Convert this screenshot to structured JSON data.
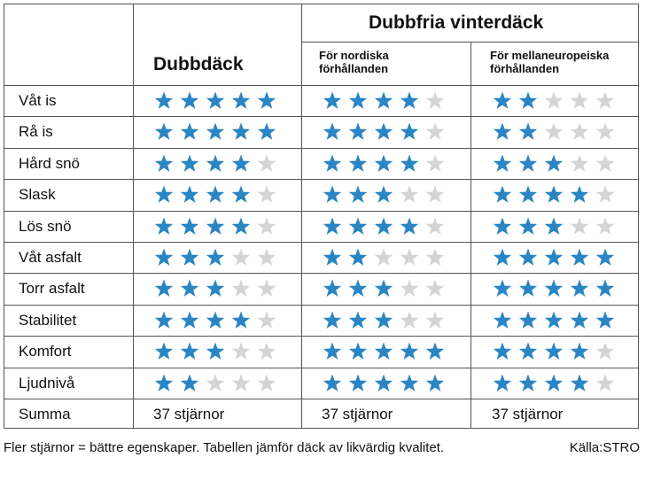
{
  "header": {
    "studded_title": "Dubbdäck",
    "studless_title": "Dubbfria vinterdäck",
    "nordic_label": "För nordiska\nförhållanden",
    "central_label": "För mellaneuropeiska\nförhållanden"
  },
  "colors": {
    "filled": "#2a85c4",
    "empty": "#d4d4d4"
  },
  "max_stars": 5,
  "rows": [
    {
      "label": "Våt is",
      "ratings": [
        5,
        4,
        2
      ]
    },
    {
      "label": "Rå is",
      "ratings": [
        5,
        4,
        2
      ]
    },
    {
      "label": "Hård snö",
      "ratings": [
        4,
        4,
        3
      ]
    },
    {
      "label": "Slask",
      "ratings": [
        4,
        3,
        4
      ]
    },
    {
      "label": "Lös snö",
      "ratings": [
        4,
        4,
        3
      ]
    },
    {
      "label": "Våt asfalt",
      "ratings": [
        3,
        2,
        5
      ]
    },
    {
      "label": "Torr asfalt",
      "ratings": [
        3,
        3,
        5
      ]
    },
    {
      "label": "Stabilitet",
      "ratings": [
        4,
        3,
        5
      ]
    },
    {
      "label": "Komfort",
      "ratings": [
        3,
        5,
        4
      ]
    },
    {
      "label": "Ljudnivå",
      "ratings": [
        2,
        5,
        4
      ]
    }
  ],
  "summary": {
    "label": "Summa",
    "totals": [
      "37 stjärnor",
      "37 stjärnor",
      "37 stjärnor"
    ]
  },
  "footer": {
    "note": "Fler stjärnor = bättre egenskaper. Tabellen jämför däck av likvärdig kvalitet.",
    "source": "Källa:STRO"
  }
}
